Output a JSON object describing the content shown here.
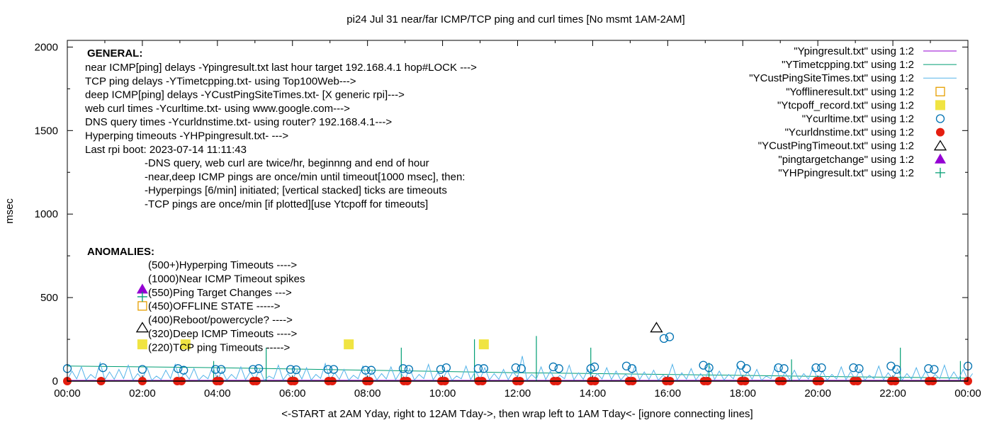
{
  "chart_data": {
    "type": "line",
    "title": "pi24 Jul 31  near/far ICMP/TCP ping and curl times [No msmt 1AM-2AM]",
    "xlabel": "<-START at 2AM Yday, right to 12AM Tday->, then wrap left to 1AM Tday<- [ignore connecting lines]",
    "ylabel": "msec",
    "xlim": [
      0,
      24
    ],
    "ylim": [
      0,
      2040
    ],
    "x_ticks": [
      0,
      2,
      4,
      6,
      8,
      10,
      12,
      14,
      16,
      18,
      20,
      22,
      24
    ],
    "x_tick_labels": [
      "00:00",
      "02:00",
      "04:00",
      "06:00",
      "08:00",
      "10:00",
      "12:00",
      "14:00",
      "16:00",
      "18:00",
      "20:00",
      "22:00",
      "00:00"
    ],
    "y_ticks": [
      0,
      500,
      1000,
      1500,
      2000
    ],
    "y_tick_labels": [
      "0",
      "500",
      "1000",
      "1500",
      "2000"
    ],
    "legend_placement": "top-right",
    "general_notes": {
      "heading": "GENERAL:",
      "lines": [
        "near ICMP[ping] delays -Ypingresult.txt last hour target 192.168.4.1 hop#LOCK --->",
        "TCP ping delays -YTimetcpping.txt- using Top100Web--->",
        "deep ICMP[ping] delays -YCustPingSiteTimes.txt- [X generic rpi]--->",
        "web curl times -Ycurltime.txt- using www.google.com--->",
        "DNS query times -Ycurldnstime.txt- using router? 192.168.4.1--->",
        "Hyperping timeouts -YHPpingresult.txt- --->",
        "Last rpi boot: 2023-07-14 11:11:43"
      ],
      "sub_lines": [
        "-DNS query, web curl are twice/hr, beginnng and end of hour",
        "-near,deep ICMP pings are once/min until timeout[1000 msec], then:",
        "  -Hyperpings [6/min] initiated; [vertical stacked] ticks are timeouts",
        "-TCP pings are once/min [if plotted][use Ytcpoff for timeouts]"
      ]
    },
    "anomalies": {
      "heading": "ANOMALIES:",
      "lines": [
        "(500+)Hyperping Timeouts ---->",
        "(1000)Near ICMP Timeout spikes",
        "(550)Ping Target Changes --->",
        "(450)OFFLINE STATE ----->",
        "(400)Reboot/powercycle? ---->",
        "(320)Deep ICMP Timeouts ---->",
        "(220)TCP ping Timeouts ----->"
      ]
    },
    "series": [
      {
        "name": "\"Ypingresult.txt\" using 1:2",
        "style": "line",
        "color": "#9400d3",
        "points": [
          [
            0,
            4
          ],
          [
            6,
            5
          ],
          [
            12,
            4
          ],
          [
            18,
            5
          ],
          [
            24,
            4
          ]
        ]
      },
      {
        "name": "\"YTimetcpping.txt\" using 1:2",
        "style": "line",
        "color": "#009e73",
        "baseline": [
          [
            0,
            90
          ],
          [
            4,
            80
          ],
          [
            8,
            65
          ],
          [
            12,
            50
          ],
          [
            16,
            40
          ],
          [
            20,
            28
          ],
          [
            24,
            18
          ]
        ],
        "spikes": [
          [
            3.9,
            120
          ],
          [
            5.3,
            200
          ],
          [
            8.9,
            200
          ],
          [
            10.85,
            250
          ],
          [
            12.5,
            270
          ],
          [
            13.95,
            200
          ],
          [
            17.1,
            110
          ],
          [
            19.3,
            130
          ],
          [
            22.2,
            200
          ],
          [
            23.8,
            120
          ]
        ]
      },
      {
        "name": "\"YCustPingSiteTimes.txt\" using 1:2",
        "style": "line",
        "color": "#56b4e9",
        "step_hours": 0.25,
        "values": [
          60,
          85,
          40,
          110,
          55,
          70,
          95,
          45,
          80,
          30,
          65,
          100,
          50,
          75,
          35,
          90,
          60,
          40,
          85,
          55,
          70,
          30,
          95,
          45,
          65,
          80,
          40,
          105,
          50,
          70,
          35,
          90,
          60,
          45,
          85,
          55,
          75,
          40,
          100,
          50,
          65,
          30,
          90,
          60,
          80,
          45,
          70,
          55,
          150,
          40,
          85,
          60,
          35,
          95,
          50,
          70,
          45,
          80,
          60,
          40,
          90,
          55,
          65,
          35,
          100,
          50,
          75,
          45,
          85,
          60,
          40,
          90,
          55,
          70,
          30,
          95,
          50,
          65,
          45,
          80,
          60,
          40,
          85,
          55,
          70,
          35,
          90,
          50,
          75,
          45,
          80,
          60,
          40,
          95,
          55,
          70,
          45
        ]
      },
      {
        "name": "\"Yofflineresult.txt\" using 1:2",
        "style": "open-square",
        "color": "#e69f00",
        "points": [
          [
            2.0,
            450
          ]
        ]
      },
      {
        "name": "\"Ytcpoff_record.txt\" using 1:2",
        "style": "filled-square",
        "color": "#f0e442",
        "points": [
          [
            2.0,
            220
          ],
          [
            3.15,
            220
          ],
          [
            7.5,
            220
          ],
          [
            11.1,
            220
          ]
        ]
      },
      {
        "name": "\"Ycurltime.txt\" using 1:2",
        "style": "open-circle",
        "color": "#0072b2",
        "points": [
          [
            0,
            75
          ],
          [
            0.95,
            80
          ],
          [
            2.0,
            70
          ],
          [
            2.95,
            75
          ],
          [
            3.1,
            65
          ],
          [
            3.95,
            70
          ],
          [
            4.1,
            70
          ],
          [
            4.95,
            70
          ],
          [
            5.1,
            75
          ],
          [
            5.95,
            70
          ],
          [
            6.1,
            68
          ],
          [
            6.95,
            70
          ],
          [
            7.1,
            70
          ],
          [
            7.95,
            65
          ],
          [
            8.1,
            65
          ],
          [
            8.95,
            75
          ],
          [
            9.1,
            70
          ],
          [
            9.95,
            70
          ],
          [
            10.1,
            80
          ],
          [
            10.95,
            75
          ],
          [
            11.1,
            75
          ],
          [
            11.95,
            80
          ],
          [
            12.1,
            75
          ],
          [
            12.95,
            85
          ],
          [
            13.1,
            75
          ],
          [
            13.95,
            75
          ],
          [
            14.05,
            85
          ],
          [
            14.9,
            90
          ],
          [
            15.05,
            75
          ],
          [
            15.9,
            255
          ],
          [
            16.05,
            265
          ],
          [
            16.95,
            95
          ],
          [
            17.1,
            80
          ],
          [
            17.95,
            95
          ],
          [
            18.1,
            75
          ],
          [
            18.95,
            80
          ],
          [
            19.1,
            75
          ],
          [
            19.95,
            80
          ],
          [
            20.1,
            80
          ],
          [
            20.95,
            80
          ],
          [
            21.1,
            75
          ],
          [
            21.95,
            90
          ],
          [
            22.1,
            70
          ],
          [
            22.95,
            75
          ],
          [
            23.1,
            70
          ],
          [
            24,
            90
          ]
        ]
      },
      {
        "name": "\"Ycurldnstime.txt\" using 1:2",
        "style": "filled-circle",
        "color": "#e51e10",
        "points": [
          [
            0,
            0
          ],
          [
            0.9,
            0
          ],
          [
            2.0,
            0
          ],
          [
            2.93,
            0
          ],
          [
            3.04,
            0
          ],
          [
            3.98,
            0
          ],
          [
            4.06,
            0
          ],
          [
            4.96,
            0
          ],
          [
            5.04,
            0
          ],
          [
            5.97,
            0
          ],
          [
            6.05,
            0
          ],
          [
            6.96,
            0
          ],
          [
            7.06,
            0
          ],
          [
            7.97,
            0
          ],
          [
            8.05,
            0
          ],
          [
            8.97,
            0
          ],
          [
            9.06,
            0
          ],
          [
            9.97,
            0
          ],
          [
            10.06,
            0
          ],
          [
            10.96,
            0
          ],
          [
            11.06,
            0
          ],
          [
            11.97,
            0
          ],
          [
            12.06,
            0
          ],
          [
            12.97,
            0
          ],
          [
            13.06,
            0
          ],
          [
            13.96,
            0
          ],
          [
            14.06,
            0
          ],
          [
            14.97,
            0
          ],
          [
            15.06,
            0
          ],
          [
            15.96,
            0
          ],
          [
            16.06,
            0
          ],
          [
            16.97,
            0
          ],
          [
            17.06,
            0
          ],
          [
            17.96,
            0
          ],
          [
            18.06,
            0
          ],
          [
            18.97,
            0
          ],
          [
            19.06,
            0
          ],
          [
            19.97,
            0
          ],
          [
            20.06,
            0
          ],
          [
            20.96,
            0
          ],
          [
            21.06,
            0
          ],
          [
            21.96,
            0
          ],
          [
            22.06,
            0
          ],
          [
            22.96,
            0
          ],
          [
            23.06,
            0
          ],
          [
            24,
            0
          ]
        ]
      },
      {
        "name": "\"YCustPingTimeout.txt\" using 1:2",
        "style": "open-triangle",
        "color": "#000000",
        "points": [
          [
            2.0,
            320
          ],
          [
            15.7,
            320
          ]
        ]
      },
      {
        "name": "\"pingtargetchange\" using 1:2",
        "style": "filled-triangle",
        "color": "#9400d3",
        "points": [
          [
            2.0,
            550
          ]
        ]
      },
      {
        "name": "\"YHPpingresult.txt\" using 1:2",
        "style": "plus",
        "color": "#009e73",
        "points": [
          [
            2.0,
            505
          ]
        ]
      }
    ]
  }
}
